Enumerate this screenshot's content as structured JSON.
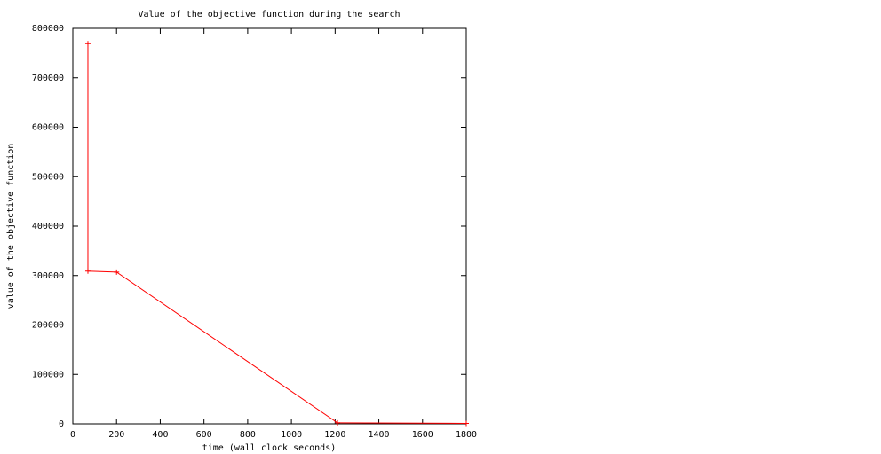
{
  "chart_data": {
    "type": "line",
    "title": "Value of the objective function during the search",
    "x_label": "time (wall clock seconds)",
    "y_label": "value of the objective function",
    "x": [
      69,
      69,
      200,
      1211,
      1800
    ],
    "series": [
      {
        "color": "#ff0000",
        "values": [
          769000,
          309000,
          307000,
          2000,
          1000
        ]
      }
    ],
    "xlim": [
      0,
      1800
    ],
    "xticks": [
      0,
      200,
      400,
      600,
      800,
      1000,
      1200,
      1400,
      1600,
      1800
    ],
    "ylim": [
      0,
      800000
    ],
    "yticks": [
      0,
      100000,
      200000,
      300000,
      400000,
      500000,
      600000,
      700000,
      800000
    ],
    "grid": false
  }
}
